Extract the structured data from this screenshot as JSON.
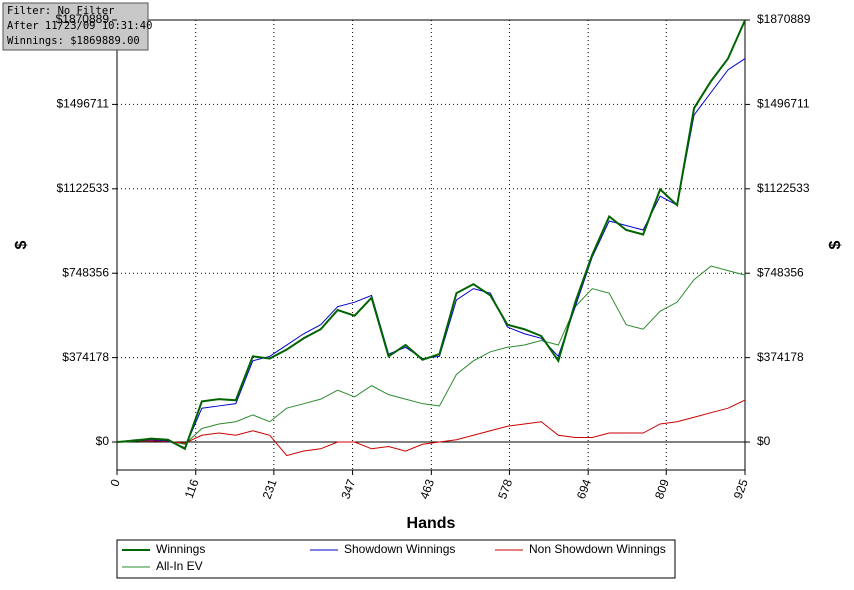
{
  "chart_data": {
    "type": "line",
    "info": [
      "Filter: No Filter",
      "After 11/23/09 10:31:40",
      "Winnings: $1869889.00"
    ],
    "x_label": "Hands",
    "y_label": "$",
    "y2_label": "$",
    "x": [
      0,
      25,
      50,
      75,
      100,
      125,
      150,
      175,
      200,
      225,
      250,
      275,
      300,
      325,
      350,
      375,
      400,
      425,
      450,
      475,
      500,
      525,
      550,
      575,
      600,
      625,
      650,
      675,
      700,
      725,
      750,
      775,
      800,
      825,
      850,
      875,
      900,
      925
    ],
    "series": [
      {
        "name": "Winnings",
        "color": "#006400",
        "width": 2,
        "values": [
          0,
          5000,
          15000,
          10000,
          -30000,
          180000,
          190000,
          185000,
          380000,
          370000,
          410000,
          460000,
          500000,
          585000,
          560000,
          640000,
          380000,
          430000,
          365000,
          390000,
          660000,
          700000,
          650000,
          520000,
          500000,
          470000,
          360000,
          620000,
          830000,
          1000000,
          940000,
          920000,
          1120000,
          1050000,
          1480000,
          1600000,
          1700000,
          1869889
        ]
      },
      {
        "name": "Showdown Winnings",
        "color": "#0000cc",
        "width": 1,
        "values": [
          0,
          5000,
          10000,
          5000,
          -25000,
          150000,
          160000,
          170000,
          360000,
          380000,
          430000,
          480000,
          520000,
          600000,
          620000,
          650000,
          390000,
          420000,
          370000,
          380000,
          630000,
          680000,
          660000,
          510000,
          480000,
          460000,
          380000,
          600000,
          820000,
          980000,
          960000,
          940000,
          1090000,
          1050000,
          1450000,
          1550000,
          1650000,
          1700000
        ]
      },
      {
        "name": "Non Showdown Winnings",
        "color": "#cc0000",
        "width": 1,
        "values": [
          0,
          5000,
          5000,
          3000,
          -5000,
          30000,
          40000,
          30000,
          50000,
          30000,
          -60000,
          -40000,
          -30000,
          0,
          0,
          -30000,
          -20000,
          -40000,
          -10000,
          0,
          10000,
          30000,
          50000,
          70000,
          80000,
          90000,
          30000,
          20000,
          20000,
          40000,
          40000,
          40000,
          80000,
          90000,
          110000,
          130000,
          150000,
          186000
        ]
      },
      {
        "name": "All-In EV",
        "color": "#2e8b2e",
        "width": 1,
        "values": [
          0,
          10000,
          15000,
          5000,
          -10000,
          60000,
          80000,
          90000,
          120000,
          90000,
          150000,
          170000,
          190000,
          230000,
          200000,
          250000,
          210000,
          190000,
          170000,
          160000,
          300000,
          360000,
          400000,
          420000,
          430000,
          450000,
          430000,
          600000,
          680000,
          660000,
          520000,
          500000,
          580000,
          620000,
          720000,
          780000,
          760000,
          740000
        ]
      }
    ],
    "xlim": [
      0,
      925
    ],
    "xticks": [
      0,
      116,
      231,
      347,
      463,
      578,
      694,
      809,
      925
    ],
    "ylim": [
      -124000,
      1870889
    ],
    "yticks": [
      {
        "value": 0,
        "label": "$0"
      },
      {
        "value": 374178,
        "label": "$374178"
      },
      {
        "value": 748356,
        "label": "$748356"
      },
      {
        "value": 1122533,
        "label": "$1122533"
      },
      {
        "value": 1496711,
        "label": "$1496711"
      },
      {
        "value": 1870889,
        "label": "$1870889"
      }
    ],
    "y2lim": [
      -124000,
      1870889
    ],
    "y2ticks": [
      {
        "value": 0,
        "label": "$0"
      },
      {
        "value": 374178,
        "label": "$374178"
      },
      {
        "value": 748356,
        "label": "$748356"
      },
      {
        "value": 1122533,
        "label": "$1122533"
      },
      {
        "value": 1496711,
        "label": "$1496711"
      },
      {
        "value": 1870889,
        "label": "$1870889"
      }
    ],
    "grid": true
  }
}
